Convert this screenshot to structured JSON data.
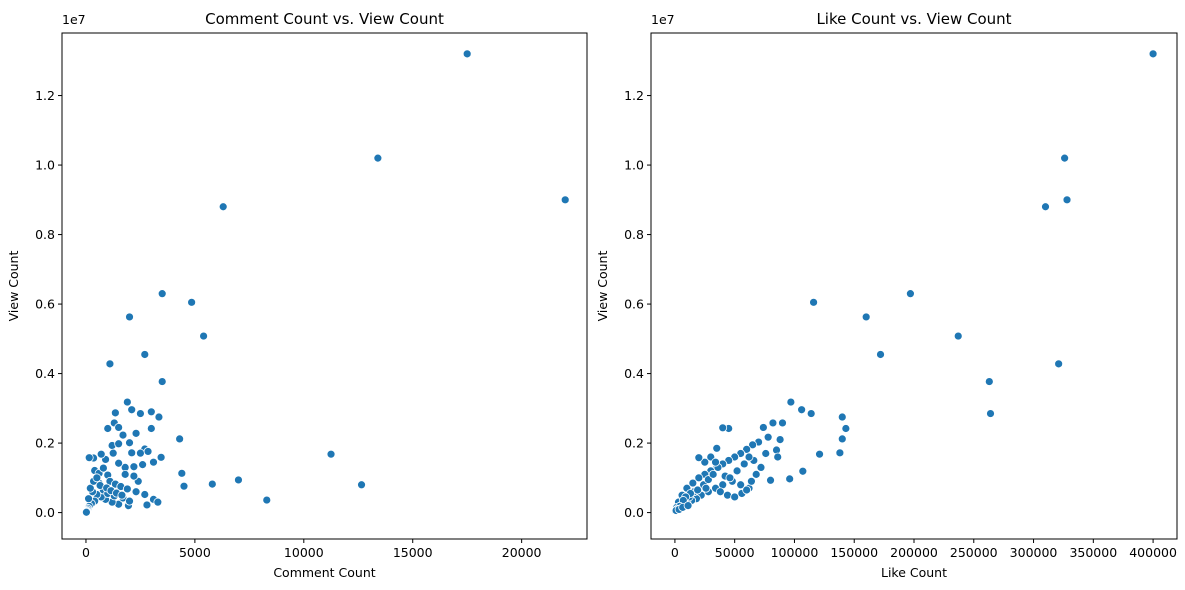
{
  "chart_data": [
    {
      "type": "scatter",
      "title": "Comment Count vs. View Count",
      "xlabel": "Comment Count",
      "ylabel": "View Count",
      "y_offset_label": "1e7",
      "xlim": [
        -1100,
        23000
      ],
      "ylim": [
        -760000,
        13800000
      ],
      "x_ticks": [
        0,
        5000,
        10000,
        15000,
        20000
      ],
      "x_tick_labels": [
        "0",
        "5000",
        "10000",
        "15000",
        "20000"
      ],
      "y_ticks": [
        0,
        2000000,
        4000000,
        6000000,
        8000000,
        10000000,
        12000000
      ],
      "y_tick_labels": [
        "0.0",
        "0.2",
        "0.4",
        "0.6",
        "0.8",
        "1.0",
        "1.2"
      ],
      "grid": false,
      "color": "#1f77b4",
      "points": [
        [
          17500,
          13200000
        ],
        [
          13400,
          10200000
        ],
        [
          22000,
          9000000
        ],
        [
          6300,
          8800000
        ],
        [
          3500,
          6300000
        ],
        [
          4850,
          6050000
        ],
        [
          2000,
          5630000
        ],
        [
          5400,
          5080000
        ],
        [
          1100,
          4280000
        ],
        [
          2700,
          4550000
        ],
        [
          3500,
          3770000
        ],
        [
          1900,
          3180000
        ],
        [
          2100,
          2960000
        ],
        [
          2500,
          2850000
        ],
        [
          3000,
          2900000
        ],
        [
          3350,
          2750000
        ],
        [
          1350,
          2870000
        ],
        [
          1300,
          2580000
        ],
        [
          1500,
          2450000
        ],
        [
          1000,
          2420000
        ],
        [
          1700,
          2230000
        ],
        [
          2300,
          2280000
        ],
        [
          3000,
          2420000
        ],
        [
          4300,
          2120000
        ],
        [
          1200,
          1930000
        ],
        [
          1500,
          1980000
        ],
        [
          2000,
          2010000
        ],
        [
          2700,
          1830000
        ],
        [
          2100,
          1720000
        ],
        [
          2500,
          1710000
        ],
        [
          2850,
          1760000
        ],
        [
          3450,
          1590000
        ],
        [
          3100,
          1450000
        ],
        [
          2600,
          1380000
        ],
        [
          2200,
          1320000
        ],
        [
          1800,
          1300000
        ],
        [
          1500,
          1420000
        ],
        [
          1250,
          1710000
        ],
        [
          900,
          1530000
        ],
        [
          700,
          1680000
        ],
        [
          350,
          1570000
        ],
        [
          150,
          1580000
        ],
        [
          400,
          1210000
        ],
        [
          600,
          1130000
        ],
        [
          800,
          1280000
        ],
        [
          1000,
          1080000
        ],
        [
          1100,
          900000
        ],
        [
          1350,
          820000
        ],
        [
          1600,
          750000
        ],
        [
          1900,
          680000
        ],
        [
          2300,
          600000
        ],
        [
          2700,
          520000
        ],
        [
          3100,
          380000
        ],
        [
          2800,
          220000
        ],
        [
          3300,
          300000
        ],
        [
          4400,
          1130000
        ],
        [
          4500,
          760000
        ],
        [
          5800,
          820000
        ],
        [
          7000,
          940000
        ],
        [
          8300,
          360000
        ],
        [
          11250,
          1680000
        ],
        [
          12650,
          800000
        ],
        [
          1950,
          200000
        ],
        [
          1500,
          240000
        ],
        [
          1200,
          300000
        ],
        [
          900,
          380000
        ],
        [
          700,
          450000
        ],
        [
          500,
          520000
        ],
        [
          300,
          600000
        ],
        [
          200,
          700000
        ],
        [
          600,
          850000
        ],
        [
          800,
          650000
        ],
        [
          1000,
          550000
        ],
        [
          1300,
          480000
        ],
        [
          1700,
          420000
        ],
        [
          400,
          330000
        ],
        [
          250,
          260000
        ],
        [
          150,
          180000
        ],
        [
          100,
          120000
        ],
        [
          80,
          80000
        ],
        [
          50,
          50000
        ],
        [
          30,
          30000
        ],
        [
          20,
          10000
        ],
        [
          120,
          400000
        ],
        [
          350,
          900000
        ],
        [
          500,
          1000000
        ],
        [
          650,
          780000
        ],
        [
          950,
          710000
        ],
        [
          1150,
          630000
        ],
        [
          1400,
          560000
        ],
        [
          1650,
          500000
        ],
        [
          2000,
          330000
        ],
        [
          2400,
          900000
        ],
        [
          1800,
          1100000
        ],
        [
          2200,
          1050000
        ]
      ]
    },
    {
      "type": "scatter",
      "title": "Like Count vs. View Count",
      "xlabel": "Like Count",
      "ylabel": "View Count",
      "y_offset_label": "1e7",
      "xlim": [
        -20000,
        420000
      ],
      "ylim": [
        -760000,
        13800000
      ],
      "x_ticks": [
        0,
        50000,
        100000,
        150000,
        200000,
        250000,
        300000,
        350000,
        400000
      ],
      "x_tick_labels": [
        "0",
        "50000",
        "100000",
        "150000",
        "200000",
        "250000",
        "300000",
        "350000",
        "400000"
      ],
      "y_ticks": [
        0,
        2000000,
        4000000,
        6000000,
        8000000,
        10000000,
        12000000
      ],
      "y_tick_labels": [
        "0.0",
        "0.2",
        "0.4",
        "0.6",
        "0.8",
        "1.0",
        "1.2"
      ],
      "grid": false,
      "color": "#1f77b4",
      "points": [
        [
          400000,
          13200000
        ],
        [
          326000,
          10200000
        ],
        [
          328000,
          9000000
        ],
        [
          310000,
          8800000
        ],
        [
          197000,
          6300000
        ],
        [
          116000,
          6050000
        ],
        [
          160000,
          5630000
        ],
        [
          237000,
          5080000
        ],
        [
          172000,
          4550000
        ],
        [
          321000,
          4280000
        ],
        [
          263000,
          3770000
        ],
        [
          264000,
          2850000
        ],
        [
          97000,
          3180000
        ],
        [
          106000,
          2960000
        ],
        [
          114000,
          2850000
        ],
        [
          140000,
          2750000
        ],
        [
          143000,
          2420000
        ],
        [
          140000,
          2120000
        ],
        [
          121000,
          1680000
        ],
        [
          138000,
          1720000
        ],
        [
          107000,
          1190000
        ],
        [
          96000,
          970000
        ],
        [
          80000,
          930000
        ],
        [
          90000,
          2580000
        ],
        [
          82000,
          2580000
        ],
        [
          74000,
          2450000
        ],
        [
          88000,
          2100000
        ],
        [
          78000,
          2170000
        ],
        [
          70000,
          2030000
        ],
        [
          65000,
          1950000
        ],
        [
          60000,
          1820000
        ],
        [
          55000,
          1700000
        ],
        [
          50000,
          1600000
        ],
        [
          45000,
          1500000
        ],
        [
          40000,
          1400000
        ],
        [
          35000,
          1300000
        ],
        [
          30000,
          1200000
        ],
        [
          25000,
          1100000
        ],
        [
          20000,
          1000000
        ],
        [
          15000,
          850000
        ],
        [
          10000,
          700000
        ],
        [
          6000,
          500000
        ],
        [
          3000,
          300000
        ],
        [
          1500,
          150000
        ],
        [
          500,
          50000
        ],
        [
          45000,
          2420000
        ],
        [
          40000,
          2440000
        ],
        [
          35000,
          1850000
        ],
        [
          30000,
          1600000
        ],
        [
          25000,
          1450000
        ],
        [
          20000,
          1580000
        ],
        [
          36000,
          1300000
        ],
        [
          42000,
          1050000
        ],
        [
          48000,
          900000
        ],
        [
          55000,
          800000
        ],
        [
          62000,
          700000
        ],
        [
          68000,
          1100000
        ],
        [
          72000,
          1300000
        ],
        [
          58000,
          1400000
        ],
        [
          52000,
          1200000
        ],
        [
          46000,
          1000000
        ],
        [
          40000,
          800000
        ],
        [
          34000,
          700000
        ],
        [
          28000,
          600000
        ],
        [
          22000,
          500000
        ],
        [
          18000,
          400000
        ],
        [
          14000,
          350000
        ],
        [
          10000,
          300000
        ],
        [
          8000,
          250000
        ],
        [
          5000,
          200000
        ],
        [
          12000,
          450000
        ],
        [
          16000,
          600000
        ],
        [
          24000,
          800000
        ],
        [
          28000,
          950000
        ],
        [
          32000,
          1100000
        ],
        [
          38000,
          600000
        ],
        [
          44000,
          500000
        ],
        [
          50000,
          450000
        ],
        [
          56000,
          550000
        ],
        [
          60000,
          650000
        ],
        [
          64000,
          900000
        ],
        [
          66000,
          1500000
        ],
        [
          62000,
          1600000
        ],
        [
          85000,
          1800000
        ],
        [
          86000,
          1600000
        ],
        [
          76000,
          1700000
        ],
        [
          34000,
          1450000
        ],
        [
          26000,
          700000
        ],
        [
          19000,
          650000
        ],
        [
          13000,
          550000
        ],
        [
          9000,
          450000
        ],
        [
          7000,
          350000
        ],
        [
          4000,
          180000
        ],
        [
          2000,
          100000
        ],
        [
          1000,
          60000
        ],
        [
          3500,
          90000
        ],
        [
          6500,
          150000
        ],
        [
          11000,
          200000
        ]
      ]
    }
  ]
}
